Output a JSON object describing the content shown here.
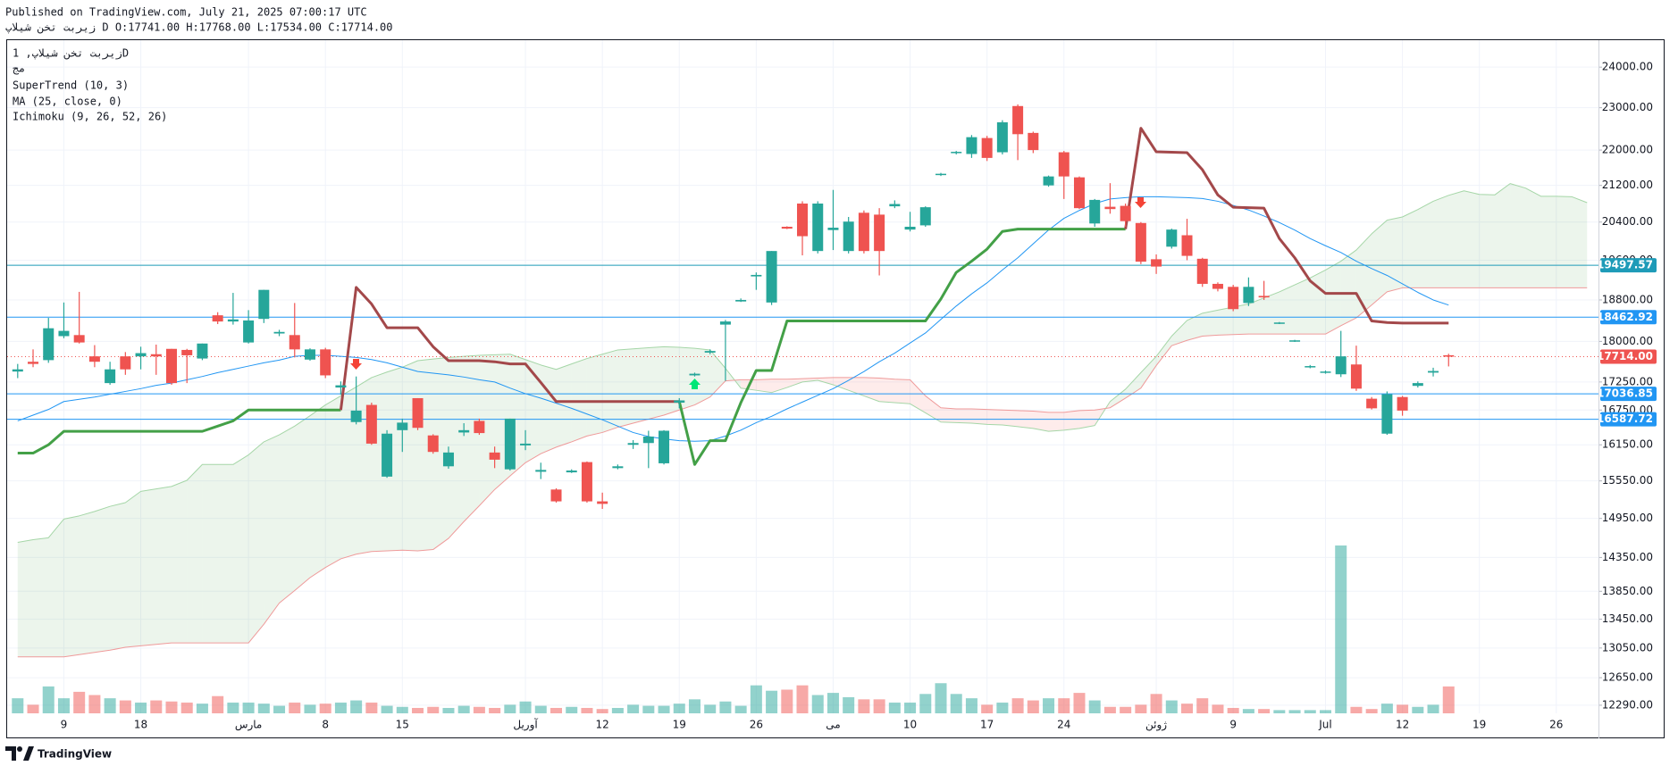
{
  "header": {
    "published": "Published on TradingView.com, July 21, 2025 07:00:17 UTC",
    "symbol_line": "زیربت تخن شیلاپ D O:17741.00 H:17768.00 L:17534.00 C:17714.00"
  },
  "footer": {
    "brand": "TradingView"
  },
  "chart_data": {
    "type": "candlestick",
    "log_scale": true,
    "grid": true,
    "legend": [
      "زیربت تخن شیلاپ, 1D",
      "مج",
      "SuperTrend (10, 3)",
      "MA (25, close, 0)",
      "Ichimoku (9, 26, 52, 26)"
    ],
    "categories": [
      null,
      null,
      null,
      "9",
      null,
      null,
      null,
      null,
      "18",
      null,
      null,
      null,
      null,
      null,
      null,
      "مارس",
      null,
      null,
      null,
      null,
      "8",
      null,
      null,
      null,
      null,
      "15",
      null,
      null,
      null,
      null,
      null,
      null,
      null,
      "آوریل",
      null,
      null,
      null,
      null,
      "12",
      null,
      null,
      null,
      null,
      "19",
      null,
      null,
      null,
      null,
      "26",
      null,
      null,
      null,
      null,
      "می",
      null,
      null,
      null,
      null,
      "10",
      null,
      null,
      null,
      null,
      "17",
      null,
      null,
      null,
      null,
      "24",
      null,
      null,
      null,
      null,
      null,
      "ژوئن",
      null,
      null,
      null,
      null,
      "9",
      null,
      null,
      null,
      null,
      null,
      "Jul",
      null,
      null,
      null,
      null,
      "12",
      null,
      null,
      null,
      null,
      "19",
      null,
      null,
      null,
      null,
      "26",
      null,
      null
    ],
    "open": [
      17440,
      17620,
      17650,
      18100,
      18120,
      17720,
      17230,
      17720,
      17720,
      17760,
      17860,
      17840,
      17680,
      18500,
      18380,
      17980,
      18430,
      18150,
      18120,
      17660,
      17850,
      17150,
      16540,
      16840,
      15620,
      16400,
      16960,
      16310,
      15790,
      16360,
      16560,
      16020,
      15740,
      16140,
      15700,
      15410,
      15690,
      15860,
      15220,
      15760,
      16150,
      16180,
      15840,
      16880,
      17370,
      17790,
      18320,
      18770,
      19270,
      18750,
      20300,
      20800,
      19790,
      20230,
      19790,
      20600,
      20560,
      20740,
      20240,
      20330,
      21430,
      21930,
      21910,
      22280,
      21950,
      23040,
      22400,
      21200,
      21950,
      21380,
      20370,
      20730,
      20750,
      20380,
      19620,
      19880,
      20120,
      19630,
      19120,
      19060,
      18740,
      18880,
      18340,
      18000,
      17520,
      17420,
      17390,
      17570,
      16950,
      16340,
      16980,
      17180,
      17420,
      17741,
      null,
      null,
      null,
      null,
      null,
      null,
      null,
      null,
      null
    ],
    "high": [
      17580,
      17850,
      18450,
      18750,
      18960,
      17930,
      17620,
      17800,
      17900,
      17940,
      17860,
      17860,
      17960,
      18560,
      18940,
      18600,
      19000,
      18220,
      18740,
      17870,
      17880,
      17260,
      17350,
      16880,
      16400,
      16600,
      16960,
      16330,
      16120,
      16520,
      16600,
      16120,
      16600,
      16400,
      15850,
      15430,
      15740,
      15870,
      15360,
      15820,
      16230,
      16390,
      16400,
      16960,
      17420,
      17850,
      18410,
      18830,
      19350,
      19790,
      20310,
      20850,
      20850,
      21100,
      20510,
      20650,
      20700,
      20870,
      20620,
      20740,
      21480,
      21980,
      22350,
      22330,
      22700,
      23080,
      22430,
      21420,
      21980,
      21400,
      20900,
      21250,
      20800,
      20400,
      19720,
      20260,
      20470,
      19650,
      19150,
      19100,
      19250,
      19180,
      18370,
      18030,
      17560,
      17460,
      18200,
      17920,
      16980,
      17080,
      17000,
      17260,
      17510,
      17768,
      null,
      null,
      null,
      null,
      null,
      null,
      null,
      null,
      null
    ],
    "low": [
      17320,
      17520,
      17600,
      18060,
      17960,
      17520,
      17200,
      17380,
      17480,
      17380,
      17200,
      17230,
      17650,
      18330,
      18320,
      17960,
      18350,
      18100,
      17700,
      17640,
      17320,
      17020,
      16500,
      16150,
      15600,
      16030,
      16400,
      16000,
      15750,
      16300,
      16320,
      15760,
      15720,
      16060,
      15580,
      15200,
      15680,
      15200,
      15100,
      15740,
      16080,
      15760,
      15820,
      16780,
      17350,
      17760,
      17270,
      18760,
      19000,
      18700,
      20250,
      19700,
      19740,
      19810,
      19740,
      19740,
      19290,
      20700,
      20200,
      20300,
      21410,
      21900,
      21820,
      21750,
      21900,
      21770,
      21930,
      21170,
      20900,
      20680,
      20300,
      20580,
      20300,
      19520,
      19320,
      19840,
      19600,
      19060,
      18970,
      18580,
      18680,
      18800,
      18330,
      17990,
      17500,
      17400,
      17340,
      17090,
      16760,
      16320,
      16650,
      17150,
      17350,
      17534,
      null,
      null,
      null,
      null,
      null,
      null,
      null,
      null,
      null
    ],
    "close": [
      17480,
      17580,
      18250,
      18200,
      17980,
      17620,
      17480,
      17480,
      17780,
      17720,
      17230,
      17740,
      17960,
      18380,
      18420,
      18400,
      19000,
      18180,
      17850,
      17850,
      17370,
      17190,
      16740,
      16170,
      16340,
      16530,
      16440,
      16030,
      16020,
      16400,
      16350,
      15900,
      16600,
      16170,
      15730,
      15220,
      15720,
      15220,
      15180,
      15790,
      16180,
      16290,
      16390,
      16920,
      17400,
      17820,
      18380,
      18800,
      19300,
      19790,
      20260,
      20100,
      20800,
      20280,
      20410,
      19790,
      19790,
      20790,
      20300,
      20720,
      21460,
      21960,
      22300,
      21820,
      22650,
      22370,
      22000,
      21400,
      21400,
      20700,
      20880,
      20680,
      20420,
      19570,
      19470,
      20240,
      19690,
      19120,
      19020,
      18620,
      19060,
      18850,
      18360,
      18020,
      17540,
      17440,
      17720,
      17130,
      16780,
      17030,
      16740,
      17230,
      17450,
      17714,
      null,
      null,
      null,
      null,
      null,
      null,
      null,
      null,
      null
    ],
    "volume": [
      14,
      8,
      25,
      14,
      20,
      17,
      14,
      12,
      10,
      12,
      11,
      10,
      9,
      16,
      10,
      10,
      9,
      7,
      10,
      8,
      9,
      10,
      12,
      10,
      7,
      6,
      5,
      6,
      5,
      7,
      6,
      5,
      8,
      11,
      7,
      5,
      6,
      5,
      4,
      5,
      8,
      7,
      7,
      9,
      13,
      8,
      11,
      7,
      26,
      21,
      22,
      26,
      17,
      19,
      15,
      13,
      13,
      10,
      10,
      18,
      28,
      18,
      14,
      8,
      10,
      14,
      12,
      14,
      14,
      19,
      12,
      6,
      6,
      8,
      18,
      12,
      9,
      14,
      8,
      5,
      4,
      4,
      3,
      3,
      3,
      3,
      156,
      6,
      4,
      9,
      8,
      6,
      8,
      25,
      null,
      null,
      null,
      null,
      null,
      null,
      null,
      null,
      null
    ],
    "up_color": "#26a69a",
    "down_color": "#ef5350",
    "volume_up_color": "rgba(38,166,154,0.5)",
    "volume_down_color": "rgba(239,83,80,0.5)",
    "supertrend": {
      "up_color": "#43a047",
      "down_color": "#a3484a",
      "up": [
        16010,
        16010,
        16150,
        16380,
        16380,
        16380,
        16380,
        16380,
        16380,
        16380,
        16380,
        16380,
        16380,
        16470,
        16560,
        16750,
        16750,
        16750,
        16750,
        16750,
        16750,
        16750,
        null,
        null,
        null,
        null,
        null,
        null,
        null,
        null,
        null,
        null,
        null,
        null,
        null,
        null,
        null,
        null,
        null,
        null,
        null,
        null,
        null,
        16900,
        15820,
        16220,
        16220,
        16880,
        17460,
        17460,
        18390,
        18390,
        18390,
        18390,
        18390,
        18390,
        18390,
        18390,
        18390,
        18390,
        18820,
        19350,
        19580,
        19830,
        20200,
        20250,
        20250,
        20250,
        20250,
        20250,
        20250,
        20250,
        20250,
        null,
        null,
        null,
        null,
        null,
        null,
        null,
        null,
        null,
        null,
        null,
        null,
        null,
        null,
        null,
        null,
        null,
        null,
        null,
        null,
        null,
        null,
        null,
        null,
        null,
        null,
        null,
        null,
        null,
        null
      ],
      "down": [
        null,
        null,
        null,
        null,
        null,
        null,
        null,
        null,
        null,
        null,
        null,
        null,
        null,
        null,
        null,
        null,
        null,
        null,
        null,
        null,
        null,
        16750,
        19050,
        18720,
        18260,
        18260,
        18260,
        17900,
        17640,
        17640,
        17640,
        17620,
        17580,
        17580,
        17240,
        16900,
        16900,
        16900,
        16900,
        16900,
        16900,
        16900,
        16900,
        16900,
        null,
        null,
        null,
        null,
        null,
        null,
        null,
        null,
        null,
        null,
        null,
        null,
        null,
        null,
        null,
        null,
        null,
        null,
        null,
        null,
        null,
        null,
        null,
        null,
        null,
        null,
        null,
        null,
        20250,
        22510,
        21960,
        21950,
        21940,
        21550,
        20990,
        20720,
        20710,
        20700,
        20050,
        19650,
        19180,
        18930,
        18930,
        18930,
        18390,
        18360,
        18350,
        18350,
        18350,
        18350,
        null,
        null,
        null,
        null,
        null,
        null,
        null,
        null,
        null
      ]
    },
    "ma": {
      "color": "#2196f3",
      "values": [
        16560,
        16660,
        16760,
        16900,
        16940,
        16980,
        17030,
        17080,
        17130,
        17190,
        17230,
        17290,
        17350,
        17420,
        17480,
        17540,
        17600,
        17650,
        17720,
        17740,
        17740,
        17720,
        17700,
        17660,
        17600,
        17520,
        17440,
        17410,
        17380,
        17340,
        17290,
        17250,
        17140,
        17040,
        16960,
        16870,
        16780,
        16680,
        16580,
        16470,
        16360,
        16290,
        16250,
        16220,
        16210,
        16220,
        16300,
        16400,
        16530,
        16640,
        16770,
        16890,
        17010,
        17130,
        17280,
        17440,
        17620,
        17780,
        17970,
        18160,
        18420,
        18680,
        18920,
        19140,
        19400,
        19650,
        19940,
        20230,
        20480,
        20650,
        20800,
        20900,
        20930,
        20950,
        20950,
        20940,
        20930,
        20910,
        20850,
        20760,
        20660,
        20530,
        20390,
        20230,
        20050,
        19900,
        19760,
        19580,
        19430,
        19290,
        19120,
        18950,
        18800,
        18700,
        null,
        null,
        null,
        null,
        null,
        null,
        null,
        null,
        null
      ]
    },
    "ichimoku": {
      "span_a_color": "#a5d6a7",
      "span_b_color": "#ef9a9a",
      "fill_up": "rgba(67,160,71,0.10)",
      "fill_down": "rgba(244,67,54,0.10)",
      "span_a": [
        14580,
        14620,
        14650,
        14940,
        14990,
        15060,
        15140,
        15200,
        15380,
        15420,
        15460,
        15560,
        15820,
        15820,
        15820,
        15980,
        16200,
        16320,
        16470,
        16650,
        16840,
        17000,
        17160,
        17330,
        17430,
        17520,
        17640,
        17670,
        17700,
        17720,
        17740,
        17750,
        17760,
        17660,
        17560,
        17480,
        17580,
        17680,
        17760,
        17840,
        17860,
        17880,
        17900,
        17890,
        17870,
        17840,
        17500,
        17140,
        17100,
        17060,
        17150,
        17250,
        17280,
        17200,
        17100,
        17000,
        16900,
        16880,
        16860,
        16700,
        16540,
        16530,
        16520,
        16500,
        16490,
        16460,
        16430,
        16380,
        16400,
        16430,
        16480,
        16900,
        17120,
        17420,
        17720,
        18100,
        18400,
        18540,
        18600,
        18660,
        18720,
        18840,
        18960,
        19100,
        19240,
        19400,
        19580,
        19810,
        20150,
        20440,
        20510,
        20670,
        20850,
        20980,
        21080,
        21000,
        20990,
        21240,
        21140,
        20960,
        20960,
        20950,
        20820
      ],
      "span_b": [
        12930,
        12930,
        12930,
        12930,
        12960,
        12990,
        13020,
        13060,
        13080,
        13100,
        13120,
        13120,
        13120,
        13120,
        13120,
        13120,
        13380,
        13680,
        13860,
        14050,
        14200,
        14330,
        14400,
        14440,
        14450,
        14460,
        14450,
        14470,
        14640,
        14900,
        15150,
        15410,
        15630,
        15850,
        16000,
        16110,
        16200,
        16300,
        16360,
        16450,
        16520,
        16590,
        16660,
        16750,
        16840,
        16980,
        17270,
        17290,
        17290,
        17300,
        17300,
        17310,
        17320,
        17330,
        17330,
        17330,
        17320,
        17300,
        17290,
        17000,
        16790,
        16770,
        16770,
        16760,
        16750,
        16740,
        16730,
        16710,
        16710,
        16740,
        16750,
        16790,
        16960,
        17140,
        17550,
        17920,
        18020,
        18100,
        18120,
        18130,
        18140,
        18140,
        18140,
        18140,
        18140,
        18140,
        18300,
        18450,
        18700,
        18960,
        19040,
        19040,
        19040,
        19040,
        19040,
        19040,
        19040,
        19040,
        19040,
        19040,
        19040,
        19040,
        19040
      ]
    },
    "price_lines": [
      {
        "value": 19497.57,
        "color": "#1e9bb8"
      },
      {
        "value": 18462.92,
        "color": "#2196f3"
      },
      {
        "value": 17036.85,
        "color": "#2196f3"
      },
      {
        "value": 16587.72,
        "color": "#2196f3"
      }
    ],
    "last_price": {
      "value": 17714,
      "label": "17714.00",
      "color": "#ef5350"
    },
    "ylim": [
      12186,
      24688
    ],
    "yticks": [
      {
        "value": 24000,
        "label": "24000.00"
      },
      {
        "value": 23000,
        "label": "23000.00"
      },
      {
        "value": 22000,
        "label": "22000.00"
      },
      {
        "value": 21200,
        "label": "21200.00"
      },
      {
        "value": 20400,
        "label": "20400.00"
      },
      {
        "value": 19600,
        "label": "19600.00"
      },
      {
        "value": 18800,
        "label": "18800.00"
      },
      {
        "value": 18000,
        "label": "18000.00"
      },
      {
        "value": 17250,
        "label": "17250.00"
      },
      {
        "value": 16750,
        "label": "16750.00"
      },
      {
        "value": 16150,
        "label": "16150.00"
      },
      {
        "value": 15550,
        "label": "15550.00"
      },
      {
        "value": 14950,
        "label": "14950.00"
      },
      {
        "value": 14350,
        "label": "14350.00"
      },
      {
        "value": 13850,
        "label": "13850.00"
      },
      {
        "value": 13450,
        "label": "13450.00"
      },
      {
        "value": 13050,
        "label": "13050.00"
      },
      {
        "value": 12650,
        "label": "12650.00"
      },
      {
        "value": 12290,
        "label": "12290.00"
      }
    ]
  }
}
